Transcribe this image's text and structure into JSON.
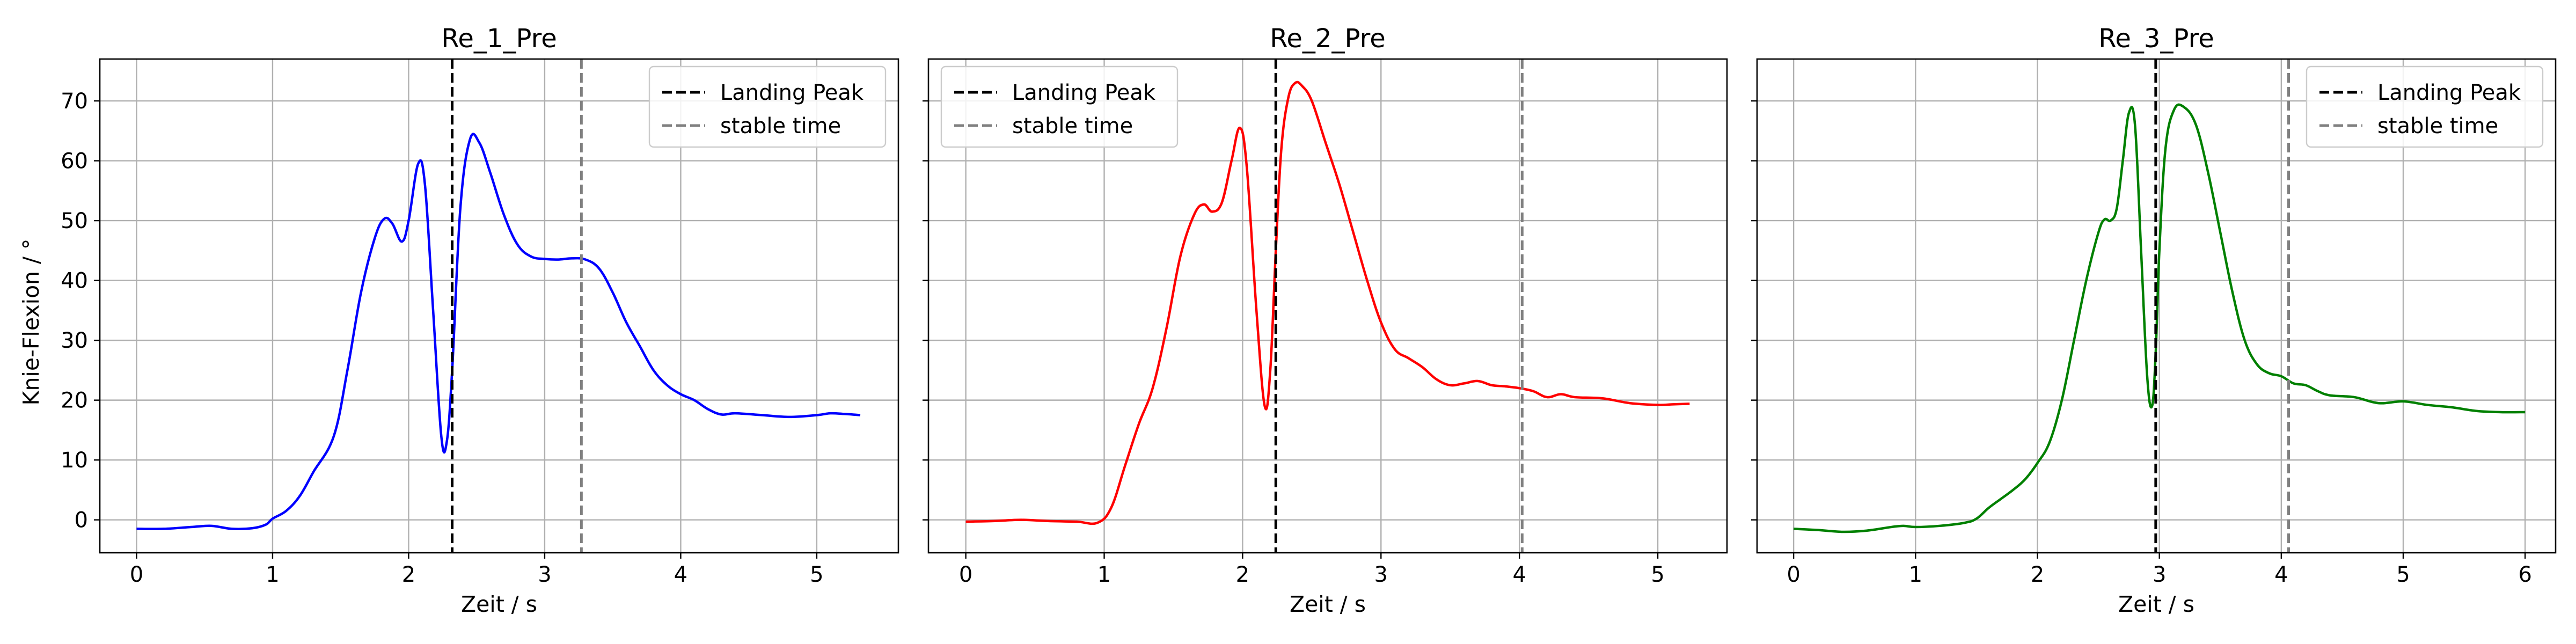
{
  "figure": {
    "shared_ylabel": "Knie-Flexion / °"
  },
  "chart_data": [
    {
      "type": "line",
      "title": "Re_1_Pre",
      "xlabel": "Zeit / s",
      "ylabel": "Knie-Flexion / °",
      "xlim": [
        -0.27,
        5.6
      ],
      "ylim": [
        -5.5,
        77
      ],
      "xticks": [
        0,
        1,
        2,
        3,
        4,
        5
      ],
      "yticks": [
        0,
        10,
        20,
        30,
        40,
        50,
        60,
        70
      ],
      "grid": true,
      "legend": {
        "placement": "upper right",
        "entries": [
          "Landing Peak",
          "stable time"
        ]
      },
      "vlines": [
        {
          "name": "Landing Peak",
          "x": 2.32,
          "color": "#000000",
          "style": "dashed"
        },
        {
          "name": "stable time",
          "x": 3.27,
          "color": "#808080",
          "style": "dashed"
        }
      ],
      "series": [
        {
          "color": "#0000ff",
          "x": [
            0,
            0.2,
            0.4,
            0.55,
            0.7,
            0.85,
            0.95,
            1.0,
            1.1,
            1.2,
            1.3,
            1.45,
            1.55,
            1.65,
            1.75,
            1.82,
            1.88,
            1.95,
            2.0,
            2.07,
            2.12,
            2.18,
            2.24,
            2.28,
            2.32,
            2.38,
            2.45,
            2.52,
            2.6,
            2.7,
            2.8,
            2.9,
            3.0,
            3.1,
            3.2,
            3.3,
            3.4,
            3.5,
            3.6,
            3.7,
            3.8,
            3.9,
            4.0,
            4.1,
            4.2,
            4.3,
            4.4,
            4.6,
            4.8,
            5.0,
            5.1,
            5.2,
            5.32
          ],
          "y": [
            -1.5,
            -1.5,
            -1.2,
            -1.0,
            -1.5,
            -1.4,
            -0.8,
            0.2,
            1.5,
            4.0,
            8.0,
            14.0,
            25.0,
            38.0,
            47.0,
            50.3,
            49.5,
            46.5,
            50.0,
            59.5,
            56.0,
            35.0,
            14.0,
            13.0,
            25.0,
            52.0,
            63.5,
            63.0,
            58.0,
            51.0,
            46.0,
            44.0,
            43.6,
            43.5,
            43.7,
            43.5,
            42.0,
            38.0,
            33.0,
            29.0,
            25.0,
            22.5,
            21.0,
            20.0,
            18.5,
            17.6,
            17.8,
            17.5,
            17.2,
            17.5,
            17.8,
            17.7,
            17.5
          ]
        }
      ]
    },
    {
      "type": "line",
      "title": "Re_2_Pre",
      "xlabel": "Zeit / s",
      "ylabel": "",
      "xlim": [
        -0.27,
        5.5
      ],
      "ylim": [
        -5.5,
        77
      ],
      "xticks": [
        0,
        1,
        2,
        3,
        4,
        5
      ],
      "yticks": [
        0,
        10,
        20,
        30,
        40,
        50,
        60,
        70
      ],
      "grid": true,
      "legend": {
        "placement": "upper left",
        "entries": [
          "Landing Peak",
          "stable time"
        ]
      },
      "vlines": [
        {
          "name": "Landing Peak",
          "x": 2.24,
          "color": "#000000",
          "style": "dashed"
        },
        {
          "name": "stable time",
          "x": 4.02,
          "color": "#808080",
          "style": "dashed"
        }
      ],
      "series": [
        {
          "color": "#ff0000",
          "x": [
            0,
            0.2,
            0.4,
            0.6,
            0.8,
            0.95,
            1.05,
            1.15,
            1.25,
            1.35,
            1.45,
            1.55,
            1.65,
            1.72,
            1.78,
            1.85,
            1.92,
            1.98,
            2.03,
            2.1,
            2.16,
            2.2,
            2.24,
            2.28,
            2.33,
            2.38,
            2.43,
            2.5,
            2.6,
            2.7,
            2.8,
            2.9,
            3.0,
            3.1,
            3.2,
            3.3,
            3.4,
            3.5,
            3.6,
            3.7,
            3.8,
            3.9,
            4.0,
            4.1,
            4.2,
            4.3,
            4.4,
            4.6,
            4.8,
            5.0,
            5.1,
            5.23
          ],
          "y": [
            -0.3,
            -0.2,
            0.0,
            -0.2,
            -0.3,
            -0.5,
            2.0,
            9.0,
            16.0,
            22.0,
            32.0,
            44.0,
            51.0,
            52.7,
            51.5,
            53.0,
            60.0,
            65.5,
            59.0,
            35.0,
            19.0,
            25.0,
            45.0,
            62.0,
            70.5,
            73.0,
            72.5,
            70.0,
            63.0,
            56.0,
            48.0,
            40.0,
            33.0,
            28.5,
            27.0,
            25.5,
            23.5,
            22.5,
            22.8,
            23.2,
            22.5,
            22.3,
            22.0,
            21.5,
            20.5,
            21.0,
            20.5,
            20.3,
            19.5,
            19.2,
            19.3,
            19.4
          ]
        }
      ]
    },
    {
      "type": "line",
      "title": "Re_3_Pre",
      "xlabel": "Zeit / s",
      "ylabel": "",
      "xlim": [
        -0.3,
        6.25
      ],
      "ylim": [
        -5.5,
        77
      ],
      "xticks": [
        0,
        1,
        2,
        3,
        4,
        5,
        6
      ],
      "yticks": [
        0,
        10,
        20,
        30,
        40,
        50,
        60,
        70
      ],
      "grid": true,
      "legend": {
        "placement": "upper right",
        "entries": [
          "Landing Peak",
          "stable time"
        ]
      },
      "vlines": [
        {
          "name": "Landing Peak",
          "x": 2.97,
          "color": "#000000",
          "style": "dashed"
        },
        {
          "name": "stable time",
          "x": 4.06,
          "color": "#808080",
          "style": "dashed"
        }
      ],
      "series": [
        {
          "color": "#008000",
          "x": [
            0,
            0.2,
            0.4,
            0.6,
            0.8,
            0.9,
            1.0,
            1.2,
            1.4,
            1.5,
            1.6,
            1.7,
            1.8,
            1.9,
            2.0,
            2.1,
            2.2,
            2.3,
            2.4,
            2.5,
            2.55,
            2.6,
            2.65,
            2.7,
            2.75,
            2.8,
            2.85,
            2.9,
            2.94,
            2.97,
            3.0,
            3.05,
            3.12,
            3.2,
            3.3,
            3.4,
            3.5,
            3.6,
            3.7,
            3.8,
            3.9,
            4.0,
            4.1,
            4.2,
            4.3,
            4.4,
            4.6,
            4.8,
            5.0,
            5.2,
            5.4,
            5.6,
            5.8,
            6.0
          ],
          "y": [
            -1.5,
            -1.7,
            -2.0,
            -1.8,
            -1.2,
            -1.0,
            -1.2,
            -1.0,
            -0.5,
            0.2,
            2.0,
            3.5,
            5.0,
            6.8,
            9.5,
            13.0,
            20.0,
            30.0,
            40.0,
            48.0,
            50.2,
            50.0,
            52.0,
            60.0,
            68.0,
            66.0,
            45.0,
            24.0,
            19.0,
            28.0,
            45.0,
            62.0,
            68.5,
            69.0,
            66.0,
            58.0,
            48.0,
            38.0,
            30.0,
            26.0,
            24.5,
            24.0,
            22.8,
            22.5,
            21.5,
            20.8,
            20.5,
            19.5,
            19.8,
            19.2,
            18.8,
            18.2,
            18.0,
            18.0
          ]
        }
      ]
    }
  ]
}
